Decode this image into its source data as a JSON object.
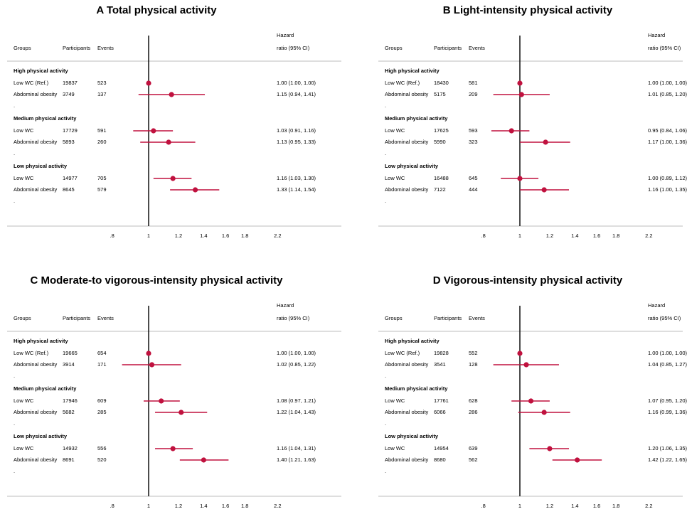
{
  "header": {
    "groups": "Groups",
    "participants": "Participants",
    "events": "Events",
    "hr_line1": "Hazard",
    "hr_line2": "ratio (95% CI)"
  },
  "colors": {
    "point": "#c0113e",
    "axis": "#000000",
    "rule": "#bdbdbd"
  },
  "chart_data": [
    {
      "type": "scatter",
      "title": "A  Total physical activity",
      "x_scale": "log",
      "reference_line": 1,
      "ticks": [
        ".8",
        "1",
        "1.2",
        "1.4",
        "1.6",
        "1.8",
        "2.2"
      ],
      "groups": [
        {
          "name": "High physical activity",
          "rows": [
            {
              "label": "Low WC (Ref.)",
              "participants": "19837",
              "events": "523",
              "hr": 1.0,
              "lo": 1.0,
              "hi": 1.0,
              "ci_text": "1.00 (1.00, 1.00)"
            },
            {
              "label": "Abdominal obesity",
              "participants": "3749",
              "events": "137",
              "hr": 1.15,
              "lo": 0.94,
              "hi": 1.41,
              "ci_text": "1.15 (0.94, 1.41)"
            }
          ]
        },
        {
          "name": "Medium physical activity",
          "rows": [
            {
              "label": "Low WC",
              "participants": "17729",
              "events": "591",
              "hr": 1.03,
              "lo": 0.91,
              "hi": 1.16,
              "ci_text": "1.03 (0.91, 1.16)"
            },
            {
              "label": "Abdominal obesity",
              "participants": "5893",
              "events": "260",
              "hr": 1.13,
              "lo": 0.95,
              "hi": 1.33,
              "ci_text": "1.13 (0.95, 1.33)"
            }
          ]
        },
        {
          "name": "Low physical activity",
          "rows": [
            {
              "label": "Low WC",
              "participants": "14977",
              "events": "705",
              "hr": 1.16,
              "lo": 1.03,
              "hi": 1.3,
              "ci_text": "1.16 (1.03, 1.30)"
            },
            {
              "label": "Abdominal obesity",
              "participants": "8645",
              "events": "579",
              "hr": 1.33,
              "lo": 1.14,
              "hi": 1.54,
              "ci_text": "1.33 (1.14, 1.54)"
            }
          ]
        }
      ]
    },
    {
      "type": "scatter",
      "title": "B  Light-intensity physical activity",
      "x_scale": "log",
      "reference_line": 1,
      "ticks": [
        ".8",
        "1",
        "1.2",
        "1.4",
        "1.6",
        "1.8",
        "2.2"
      ],
      "groups": [
        {
          "name": "High physical activity",
          "rows": [
            {
              "label": "Low WC (Ref.)",
              "participants": "18430",
              "events": "581",
              "hr": 1.0,
              "lo": 1.0,
              "hi": 1.0,
              "ci_text": "1.00 (1.00, 1.00)"
            },
            {
              "label": "Abdominal obesity",
              "participants": "5175",
              "events": "209",
              "hr": 1.01,
              "lo": 0.85,
              "hi": 1.2,
              "ci_text": "1.01 (0.85, 1.20)"
            }
          ]
        },
        {
          "name": "Medium physical activity",
          "rows": [
            {
              "label": "Low WC",
              "participants": "17625",
              "events": "593",
              "hr": 0.95,
              "lo": 0.84,
              "hi": 1.06,
              "ci_text": "0.95 (0.84, 1.06)"
            },
            {
              "label": "Abdominal obesity",
              "participants": "5990",
              "events": "323",
              "hr": 1.17,
              "lo": 1.0,
              "hi": 1.36,
              "ci_text": "1.17 (1.00, 1.36)"
            }
          ]
        },
        {
          "name": "Low physical activity",
          "rows": [
            {
              "label": "Low WC",
              "participants": "16488",
              "events": "645",
              "hr": 1.0,
              "lo": 0.89,
              "hi": 1.12,
              "ci_text": "1.00 (0.89, 1.12)"
            },
            {
              "label": "Abdominal obesity",
              "participants": "7122",
              "events": "444",
              "hr": 1.16,
              "lo": 1.0,
              "hi": 1.35,
              "ci_text": "1.16 (1.00, 1.35)"
            }
          ]
        }
      ]
    },
    {
      "type": "scatter",
      "title": "C  Moderate-to vigorous-intensity physical activity",
      "x_scale": "log",
      "reference_line": 1,
      "ticks": [
        ".8",
        "1",
        "1.2",
        "1.4",
        "1.6",
        "1.8",
        "2.2"
      ],
      "groups": [
        {
          "name": "High physical activity",
          "rows": [
            {
              "label": "Low WC (Ref.)",
              "participants": "19665",
              "events": "654",
              "hr": 1.0,
              "lo": 1.0,
              "hi": 1.0,
              "ci_text": "1.00 (1.00, 1.00)"
            },
            {
              "label": "Abdominal obesity",
              "participants": "3914",
              "events": "171",
              "hr": 1.02,
              "lo": 0.85,
              "hi": 1.22,
              "ci_text": "1.02 (0.85, 1.22)"
            }
          ]
        },
        {
          "name": "Medium physical activity",
          "rows": [
            {
              "label": "Low WC",
              "participants": "17946",
              "events": "609",
              "hr": 1.08,
              "lo": 0.97,
              "hi": 1.21,
              "ci_text": "1.08 (0.97, 1.21)"
            },
            {
              "label": "Abdominal obesity",
              "participants": "5682",
              "events": "285",
              "hr": 1.22,
              "lo": 1.04,
              "hi": 1.43,
              "ci_text": "1.22 (1.04, 1.43)"
            }
          ]
        },
        {
          "name": "Low physical activity",
          "rows": [
            {
              "label": "Low WC",
              "participants": "14932",
              "events": "556",
              "hr": 1.16,
              "lo": 1.04,
              "hi": 1.31,
              "ci_text": "1.16 (1.04, 1.31)"
            },
            {
              "label": "Abdominal obesity",
              "participants": "8691",
              "events": "520",
              "hr": 1.4,
              "lo": 1.21,
              "hi": 1.63,
              "ci_text": "1.40 (1.21, 1.63)"
            }
          ]
        }
      ]
    },
    {
      "type": "scatter",
      "title": "D  Vigorous-intensity physical activity",
      "x_scale": "log",
      "reference_line": 1,
      "ticks": [
        ".8",
        "1",
        "1.2",
        "1.4",
        "1.6",
        "1.8",
        "2.2"
      ],
      "groups": [
        {
          "name": "High physical activity",
          "rows": [
            {
              "label": "Low WC (Ref.)",
              "participants": "19828",
              "events": "552",
              "hr": 1.0,
              "lo": 1.0,
              "hi": 1.0,
              "ci_text": "1.00 (1.00, 1.00)"
            },
            {
              "label": "Abdominal obesity",
              "participants": "3541",
              "events": "128",
              "hr": 1.04,
              "lo": 0.85,
              "hi": 1.27,
              "ci_text": "1.04 (0.85, 1.27)"
            }
          ]
        },
        {
          "name": "Medium physical activity",
          "rows": [
            {
              "label": "Low WC",
              "participants": "17761",
              "events": "628",
              "hr": 1.07,
              "lo": 0.95,
              "hi": 1.2,
              "ci_text": "1.07 (0.95, 1.20)"
            },
            {
              "label": "Abdominal obesity",
              "participants": "6066",
              "events": "286",
              "hr": 1.16,
              "lo": 0.99,
              "hi": 1.36,
              "ci_text": "1.16 (0.99, 1.36)"
            }
          ]
        },
        {
          "name": "Low physical activity",
          "rows": [
            {
              "label": "Low WC",
              "participants": "14954",
              "events": "639",
              "hr": 1.2,
              "lo": 1.06,
              "hi": 1.35,
              "ci_text": "1.20 (1.06, 1.35)"
            },
            {
              "label": "Abdominal obesity",
              "participants": "8680",
              "events": "562",
              "hr": 1.42,
              "lo": 1.22,
              "hi": 1.65,
              "ci_text": "1.42 (1.22, 1.65)"
            }
          ]
        }
      ]
    }
  ]
}
